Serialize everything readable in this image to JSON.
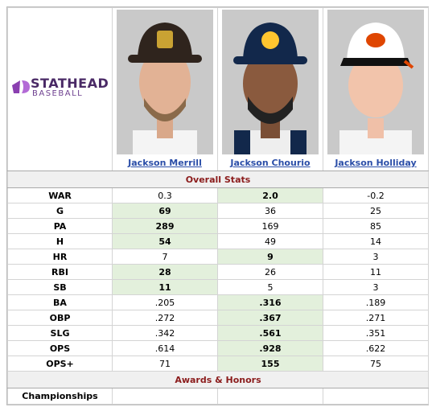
{
  "logo": {
    "top": "STATHEAD",
    "bottom": "BASEBALL"
  },
  "players": [
    "Jackson Merrill",
    "Jackson Chourio",
    "Jackson Holliday"
  ],
  "sections": [
    "Overall Stats",
    "Awards & Honors"
  ],
  "stats": {
    "rows": [
      {
        "label": "WAR",
        "values": [
          "0.3",
          "2.0",
          "-0.2"
        ],
        "best": 1
      },
      {
        "label": "G",
        "values": [
          "69",
          "36",
          "25"
        ],
        "best": 0
      },
      {
        "label": "PA",
        "values": [
          "289",
          "169",
          "85"
        ],
        "best": 0
      },
      {
        "label": "H",
        "values": [
          "54",
          "49",
          "14"
        ],
        "best": 0
      },
      {
        "label": "HR",
        "values": [
          "7",
          "9",
          "3"
        ],
        "best": 1
      },
      {
        "label": "RBI",
        "values": [
          "28",
          "26",
          "11"
        ],
        "best": 0
      },
      {
        "label": "SB",
        "values": [
          "11",
          "5",
          "3"
        ],
        "best": 0
      },
      {
        "label": "BA",
        "values": [
          ".205",
          ".316",
          ".189"
        ],
        "best": 1
      },
      {
        "label": "OBP",
        "values": [
          ".272",
          ".367",
          ".271"
        ],
        "best": 1
      },
      {
        "label": "SLG",
        "values": [
          ".342",
          ".561",
          ".351"
        ],
        "best": 1
      },
      {
        "label": "OPS",
        "values": [
          ".614",
          ".928",
          ".622"
        ],
        "best": 1
      },
      {
        "label": "OPS+",
        "values": [
          "71",
          "155",
          "75"
        ],
        "best": 1
      }
    ],
    "highlight": "#e3f0dc"
  },
  "awards": {
    "rows": [
      {
        "label": "Championships"
      }
    ]
  }
}
